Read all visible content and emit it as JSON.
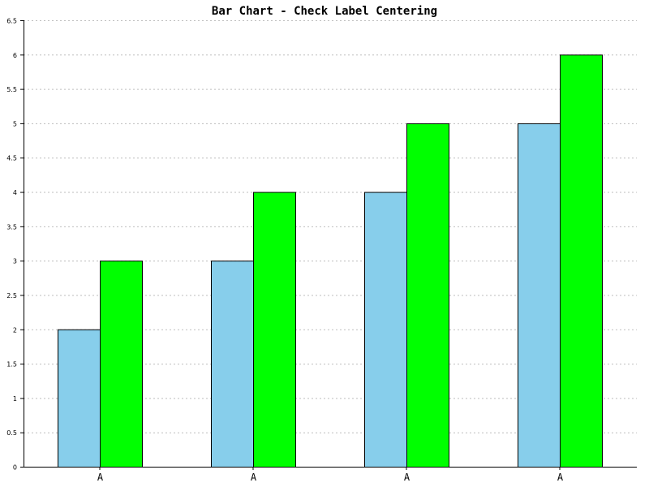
{
  "chart_data": {
    "type": "bar",
    "title": "Bar Chart - Check Label Centering",
    "xlabel": "",
    "ylabel": "",
    "categories": [
      "A",
      "A",
      "A",
      "A"
    ],
    "ylim": [
      0,
      6.5
    ],
    "yticks": [
      "0",
      "0.5",
      "1",
      "1.5",
      "2",
      "2.5",
      "3",
      "3.5",
      "4",
      "4.5",
      "5",
      "5.5",
      "6",
      "6.5"
    ],
    "grid": true,
    "legend": "none",
    "series": [
      {
        "color": "#87ceeb",
        "values": [
          2,
          3,
          4,
          5
        ]
      },
      {
        "color": "#00ff00",
        "values": [
          3,
          4,
          5,
          6
        ]
      }
    ]
  }
}
